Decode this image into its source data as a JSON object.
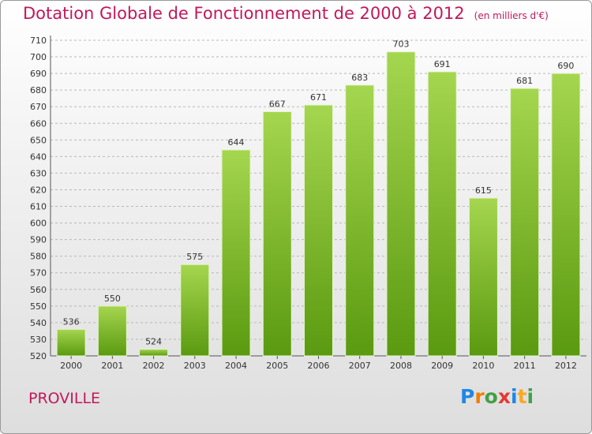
{
  "title": "Dotation Globale de Fonctionnement de 2000 à 2012",
  "unit": "(en milliers d'€)",
  "commune": "PROVILLE",
  "logo": {
    "text": "Proxiti",
    "letters": [
      {
        "ch": "P",
        "color": "#1e88e5"
      },
      {
        "ch": "r",
        "color": "#f57c00"
      },
      {
        "ch": "o",
        "color": "#43a047"
      },
      {
        "ch": "x",
        "color": "#e53935"
      },
      {
        "ch": "i",
        "color": "#1e88e5"
      },
      {
        "ch": "t",
        "color": "#f9a825"
      },
      {
        "ch": "i",
        "color": "#43a047"
      }
    ]
  },
  "colors": {
    "title": "#c2185b",
    "bar_top": "#a5d64f",
    "bar_bottom": "#5a9a10",
    "grid": "#b8b8b8",
    "axis_text": "#333333"
  },
  "chart_data": {
    "type": "bar",
    "title": "Dotation Globale de Fonctionnement de 2000 à 2012",
    "subtitle": "(en milliers d'€)",
    "xlabel": "",
    "ylabel": "",
    "categories": [
      "2000",
      "2001",
      "2002",
      "2003",
      "2004",
      "2005",
      "2006",
      "2007",
      "2008",
      "2009",
      "2010",
      "2011",
      "2012"
    ],
    "values": [
      536,
      550,
      524,
      575,
      644,
      667,
      671,
      683,
      703,
      691,
      615,
      681,
      690
    ],
    "ylim": [
      520,
      710
    ],
    "ytick_step": 10,
    "grid": true,
    "legend": "none"
  }
}
